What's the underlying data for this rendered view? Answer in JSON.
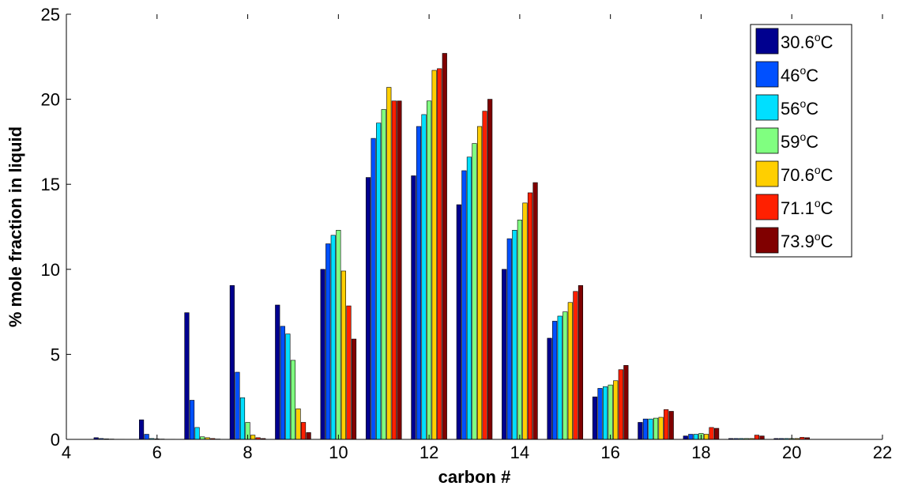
{
  "chart_data": {
    "type": "bar",
    "title": "",
    "xlabel": "carbon #",
    "ylabel": "% mole fraction in liquid",
    "xlim": [
      4,
      22
    ],
    "ylim": [
      0,
      25
    ],
    "xticks": [
      "4",
      "6",
      "8",
      "10",
      "12",
      "14",
      "16",
      "18",
      "20",
      "22"
    ],
    "yticks": [
      "0",
      "5",
      "10",
      "15",
      "20",
      "25"
    ],
    "grid": false,
    "legend_position": "top-right",
    "categories": [
      5,
      6,
      7,
      8,
      9,
      10,
      11,
      12,
      13,
      14,
      15,
      16,
      17,
      18,
      19,
      20
    ],
    "series": [
      {
        "name": "30.6",
        "sup": "o",
        "unit": "C",
        "color": "#00008f",
        "values": [
          0.1,
          1.15,
          7.45,
          9.05,
          7.9,
          10.0,
          15.4,
          15.5,
          13.8,
          10.0,
          5.95,
          2.5,
          1.0,
          0.2,
          0.05,
          0.05
        ]
      },
      {
        "name": "46",
        "sup": "o",
        "unit": "C",
        "color": "#0050ff",
        "values": [
          0.05,
          0.3,
          2.3,
          3.95,
          6.65,
          11.5,
          17.7,
          18.4,
          15.8,
          11.8,
          6.95,
          3.0,
          1.2,
          0.3,
          0.05,
          0.05
        ]
      },
      {
        "name": "56",
        "sup": "o",
        "unit": "C",
        "color": "#00dfff",
        "values": [
          0.03,
          0.05,
          0.7,
          2.45,
          6.2,
          12.0,
          18.6,
          19.1,
          16.6,
          12.3,
          7.25,
          3.1,
          1.2,
          0.3,
          0.05,
          0.05
        ]
      },
      {
        "name": "59",
        "sup": "o",
        "unit": "C",
        "color": "#80ff80",
        "values": [
          0.02,
          0.03,
          0.15,
          1.0,
          4.65,
          12.3,
          19.4,
          19.9,
          17.4,
          12.9,
          7.5,
          3.2,
          1.25,
          0.35,
          0.05,
          0.05
        ]
      },
      {
        "name": "70.6",
        "sup": "o",
        "unit": "C",
        "color": "#ffcf00",
        "values": [
          0.01,
          0.02,
          0.1,
          0.25,
          1.8,
          9.9,
          20.7,
          21.7,
          18.4,
          13.9,
          8.05,
          3.45,
          1.3,
          0.3,
          0.05,
          0.05
        ]
      },
      {
        "name": "71.1",
        "sup": "o",
        "unit": "C",
        "color": "#ff2000",
        "values": [
          0.01,
          0.01,
          0.05,
          0.1,
          1.0,
          7.85,
          19.9,
          21.8,
          19.3,
          14.5,
          8.7,
          4.1,
          1.75,
          0.7,
          0.25,
          0.12
        ]
      },
      {
        "name": "73.9",
        "sup": "o",
        "unit": "C",
        "color": "#800000",
        "values": [
          0.0,
          0.01,
          0.02,
          0.05,
          0.4,
          5.9,
          19.9,
          22.7,
          20.0,
          15.1,
          9.05,
          4.35,
          1.65,
          0.65,
          0.2,
          0.1
        ]
      }
    ]
  }
}
